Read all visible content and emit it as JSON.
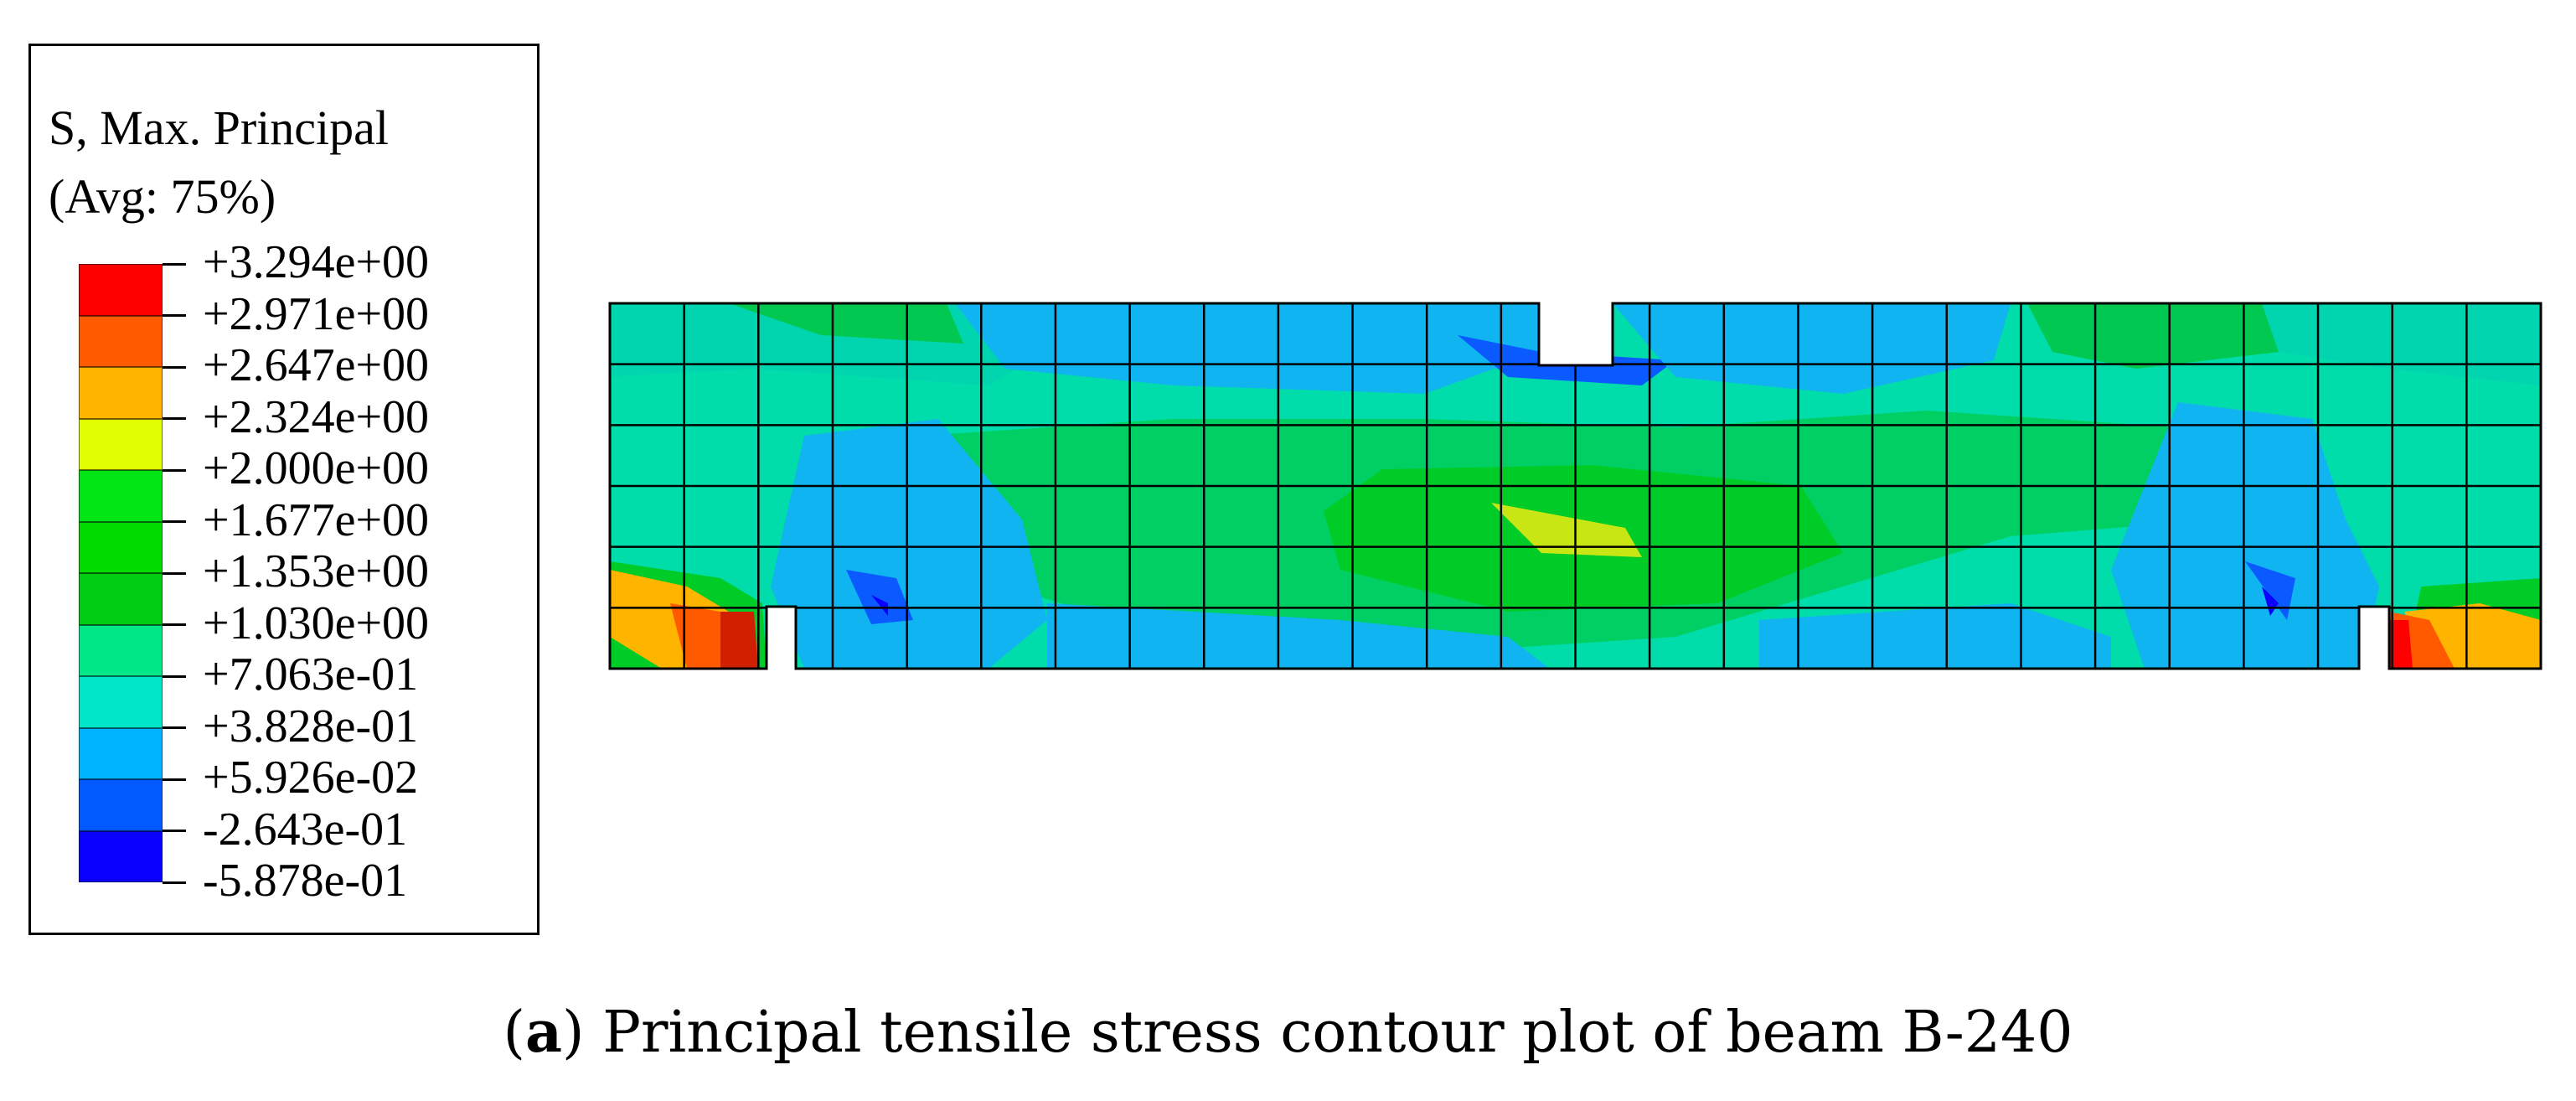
{
  "legend": {
    "title_line1": "S, Max. Principal",
    "title_line2": "(Avg: 75%)",
    "levels": [
      "+3.294e+00",
      "+2.971e+00",
      "+2.647e+00",
      "+2.324e+00",
      "+2.000e+00",
      "+1.677e+00",
      "+1.353e+00",
      "+1.030e+00",
      "+7.063e-01",
      "+3.828e-01",
      "+5.926e-02",
      "-2.643e-01",
      "-5.878e-01"
    ],
    "band_colors": [
      "#ff0000",
      "#ff5a00",
      "#ffb400",
      "#e1ff00",
      "#00e614",
      "#00dc00",
      "#00cc14",
      "#00e888",
      "#00e6c8",
      "#00b4ff",
      "#005aff",
      "#0a00ff"
    ]
  },
  "caption": {
    "tag": "a",
    "text": " Principal tensile stress contour plot of beam B-240"
  }
}
